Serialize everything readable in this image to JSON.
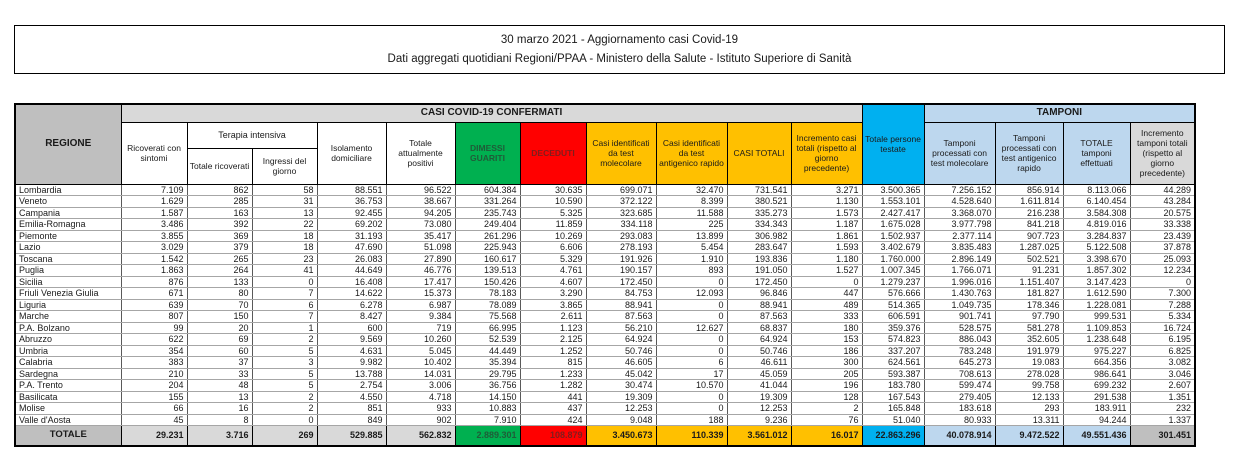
{
  "header_box": {
    "line1": "30 marzo 2021 - Aggiornamento casi Covid-19",
    "line2": "Dati aggregati quotidiani Regioni/PPAA - Ministero della Salute - Istituto Superiore di Sanità"
  },
  "table": {
    "corner_header": "REGIONE",
    "groups": {
      "confirmed": "CASI COVID-19 CONFERMATI",
      "intensive_care": "Terapia intensiva",
      "tested": "Totale persone testate",
      "swabs": "TAMPONI"
    },
    "columns": {
      "ricoverati": "Ricoverati con sintomi",
      "totale_ricoverati": "Totale ricoverati",
      "ingressi": "Ingressi del giorno",
      "isolamento": "Isolamento domiciliare",
      "attualmente_positivi": "Totale attualmente positivi",
      "dimessi": "DIMESSI GUARITI",
      "deceduti": "DECEDUTI",
      "casi_molecolare": "Casi identificati da test molecolare",
      "casi_antigenico": "Casi identificati da test antigenico rapido",
      "casi_totali": "CASI TOTALI",
      "incremento_casi": "Incremento casi totali (rispetto al giorno precedente)",
      "tamponi_molecolare": "Tamponi processati con test molecolare",
      "tamponi_antigenico": "Tamponi processati con test antigenico rapido",
      "totale_tamponi": "TOTALE tamponi effettuati",
      "incremento_tamponi": "Incremento tamponi totali (rispetto al giorno precedente)"
    },
    "rows": [
      {
        "name": "Lombardia",
        "values": [
          "7.109",
          "862",
          "58",
          "88.551",
          "96.522",
          "604.384",
          "30.635",
          "699.071",
          "32.470",
          "731.541",
          "3.271",
          "3.500.365",
          "7.256.152",
          "856.914",
          "8.113.066",
          "44.289"
        ]
      },
      {
        "name": "Veneto",
        "values": [
          "1.629",
          "285",
          "31",
          "36.753",
          "38.667",
          "331.264",
          "10.590",
          "372.122",
          "8.399",
          "380.521",
          "1.130",
          "1.553.101",
          "4.528.640",
          "1.611.814",
          "6.140.454",
          "43.284"
        ]
      },
      {
        "name": "Campania",
        "values": [
          "1.587",
          "163",
          "13",
          "92.455",
          "94.205",
          "235.743",
          "5.325",
          "323.685",
          "11.588",
          "335.273",
          "1.573",
          "2.427.417",
          "3.368.070",
          "216.238",
          "3.584.308",
          "20.575"
        ]
      },
      {
        "name": "Emilia-Romagna",
        "values": [
          "3.486",
          "392",
          "22",
          "69.202",
          "73.080",
          "249.404",
          "11.859",
          "334.118",
          "225",
          "334.343",
          "1.187",
          "1.675.028",
          "3.977.798",
          "841.218",
          "4.819.016",
          "33.338"
        ]
      },
      {
        "name": "Piemonte",
        "values": [
          "3.855",
          "369",
          "18",
          "31.193",
          "35.417",
          "261.296",
          "10.269",
          "293.083",
          "13.899",
          "306.982",
          "1.861",
          "1.502.937",
          "2.377.114",
          "907.723",
          "3.284.837",
          "23.439"
        ]
      },
      {
        "name": "Lazio",
        "values": [
          "3.029",
          "379",
          "18",
          "47.690",
          "51.098",
          "225.943",
          "6.606",
          "278.193",
          "5.454",
          "283.647",
          "1.593",
          "3.402.679",
          "3.835.483",
          "1.287.025",
          "5.122.508",
          "37.878"
        ]
      },
      {
        "name": "Toscana",
        "values": [
          "1.542",
          "265",
          "23",
          "26.083",
          "27.890",
          "160.617",
          "5.329",
          "191.926",
          "1.910",
          "193.836",
          "1.180",
          "1.760.000",
          "2.896.149",
          "502.521",
          "3.398.670",
          "25.093"
        ]
      },
      {
        "name": "Puglia",
        "values": [
          "1.863",
          "264",
          "41",
          "44.649",
          "46.776",
          "139.513",
          "4.761",
          "190.157",
          "893",
          "191.050",
          "1.527",
          "1.007.345",
          "1.766.071",
          "91.231",
          "1.857.302",
          "12.234"
        ]
      },
      {
        "name": "Sicilia",
        "values": [
          "876",
          "133",
          "0",
          "16.408",
          "17.417",
          "150.426",
          "4.607",
          "172.450",
          "0",
          "172.450",
          "0",
          "1.279.237",
          "1.996.016",
          "1.151.407",
          "3.147.423",
          "0"
        ]
      },
      {
        "name": "Friuli Venezia Giulia",
        "values": [
          "671",
          "80",
          "7",
          "14.622",
          "15.373",
          "78.183",
          "3.290",
          "84.753",
          "12.093",
          "96.846",
          "447",
          "576.666",
          "1.430.763",
          "181.827",
          "1.612.590",
          "7.300"
        ]
      },
      {
        "name": "Liguria",
        "values": [
          "639",
          "70",
          "6",
          "6.278",
          "6.987",
          "78.089",
          "3.865",
          "88.941",
          "0",
          "88.941",
          "489",
          "514.365",
          "1.049.735",
          "178.346",
          "1.228.081",
          "7.288"
        ]
      },
      {
        "name": "Marche",
        "values": [
          "807",
          "150",
          "7",
          "8.427",
          "9.384",
          "75.568",
          "2.611",
          "87.563",
          "0",
          "87.563",
          "333",
          "606.591",
          "901.741",
          "97.790",
          "999.531",
          "5.334"
        ]
      },
      {
        "name": "P.A. Bolzano",
        "values": [
          "99",
          "20",
          "1",
          "600",
          "719",
          "66.995",
          "1.123",
          "56.210",
          "12.627",
          "68.837",
          "180",
          "359.376",
          "528.575",
          "581.278",
          "1.109.853",
          "16.724"
        ]
      },
      {
        "name": "Abruzzo",
        "values": [
          "622",
          "69",
          "2",
          "9.569",
          "10.260",
          "52.539",
          "2.125",
          "64.924",
          "0",
          "64.924",
          "153",
          "574.823",
          "886.043",
          "352.605",
          "1.238.648",
          "6.195"
        ]
      },
      {
        "name": "Umbria",
        "values": [
          "354",
          "60",
          "5",
          "4.631",
          "5.045",
          "44.449",
          "1.252",
          "50.746",
          "0",
          "50.746",
          "186",
          "337.207",
          "783.248",
          "191.979",
          "975.227",
          "6.825"
        ]
      },
      {
        "name": "Calabria",
        "values": [
          "383",
          "37",
          "3",
          "9.982",
          "10.402",
          "35.394",
          "815",
          "46.605",
          "6",
          "46.611",
          "300",
          "624.561",
          "645.273",
          "19.083",
          "664.356",
          "3.082"
        ]
      },
      {
        "name": "Sardegna",
        "values": [
          "210",
          "33",
          "5",
          "13.788",
          "14.031",
          "29.795",
          "1.233",
          "45.042",
          "17",
          "45.059",
          "205",
          "593.387",
          "708.613",
          "278.028",
          "986.641",
          "3.046"
        ]
      },
      {
        "name": "P.A. Trento",
        "values": [
          "204",
          "48",
          "5",
          "2.754",
          "3.006",
          "36.756",
          "1.282",
          "30.474",
          "10.570",
          "41.044",
          "196",
          "183.780",
          "599.474",
          "99.758",
          "699.232",
          "2.607"
        ]
      },
      {
        "name": "Basilicata",
        "values": [
          "155",
          "13",
          "2",
          "4.550",
          "4.718",
          "14.150",
          "441",
          "19.309",
          "0",
          "19.309",
          "128",
          "167.543",
          "279.405",
          "12.133",
          "291.538",
          "1.351"
        ]
      },
      {
        "name": "Molise",
        "values": [
          "66",
          "16",
          "2",
          "851",
          "933",
          "10.883",
          "437",
          "12.253",
          "0",
          "12.253",
          "2",
          "165.848",
          "183.618",
          "293",
          "183.911",
          "232"
        ]
      },
      {
        "name": "Valle d'Aosta",
        "values": [
          "45",
          "8",
          "0",
          "849",
          "902",
          "7.910",
          "424",
          "9.048",
          "188",
          "9.236",
          "76",
          "51.040",
          "80.933",
          "13.311",
          "94.244",
          "1.337"
        ]
      }
    ],
    "total_row": {
      "label": "TOTALE",
      "values": [
        "29.231",
        "3.716",
        "269",
        "529.885",
        "562.832",
        "2.889.301",
        "108.879",
        "3.450.673",
        "110.339",
        "3.561.012",
        "16.017",
        "22.863.296",
        "40.078.914",
        "9.472.522",
        "49.551.436",
        "301.451"
      ]
    }
  },
  "colors": {
    "green": "#00B050",
    "red": "#FF0000",
    "gold": "#FFC000",
    "cyan": "#00B0F0",
    "light_blue": "#BDD7EE",
    "gray": "#BFBFBF",
    "light_gray": "#D9D9D9"
  }
}
